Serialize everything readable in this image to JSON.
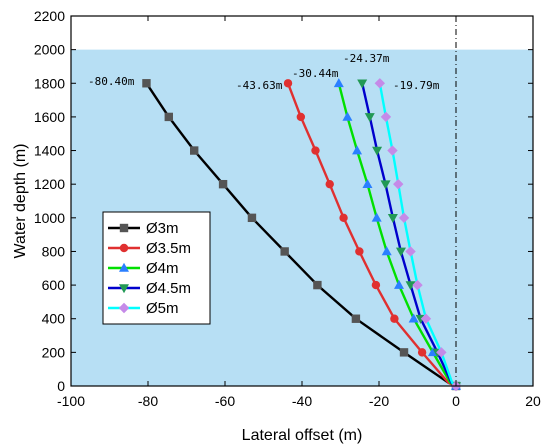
{
  "chart_data": {
    "type": "line",
    "xlabel": "Lateral offset (m)",
    "ylabel": "Water depth (m)",
    "xlim": [
      -100,
      20
    ],
    "ylim": [
      0,
      2200
    ],
    "xticks": [
      -100,
      -80,
      -60,
      -40,
      -20,
      0,
      20
    ],
    "yticks": [
      0,
      200,
      400,
      600,
      800,
      1000,
      1200,
      1400,
      1600,
      1800,
      2000,
      2200
    ],
    "water_level": 2000,
    "water_color": "#b7dff4",
    "reference_line_x": 0,
    "grid": false,
    "legend_position": "left-middle",
    "series": [
      {
        "name": "Ø3m",
        "color": "#000000",
        "marker": "square",
        "marker_color": "#555555",
        "x": [
          -80.4,
          -74.6,
          -68.0,
          -60.5,
          -53.0,
          -44.5,
          -36.0,
          -26.0,
          -13.5,
          -2.0,
          0
        ],
        "y": [
          1800,
          1600,
          1400,
          1200,
          1000,
          800,
          600,
          400,
          200,
          20,
          0
        ]
      },
      {
        "name": "Ø3.5m",
        "color": "#e03030",
        "marker": "circle",
        "marker_color": "#e03030",
        "x": [
          -43.63,
          -40.3,
          -36.5,
          -32.8,
          -29.2,
          -25.1,
          -20.8,
          -16.0,
          -8.8,
          -2.0,
          0
        ],
        "y": [
          1800,
          1600,
          1400,
          1200,
          1000,
          800,
          600,
          400,
          200,
          20,
          0
        ]
      },
      {
        "name": "Ø4m",
        "color": "#00e000",
        "marker": "triangle-up",
        "marker_color": "#2a7fff",
        "x": [
          -30.44,
          -28.2,
          -25.7,
          -23.0,
          -20.6,
          -18.0,
          -14.8,
          -11.0,
          -6.0,
          -1.5,
          0
        ],
        "y": [
          1800,
          1600,
          1400,
          1200,
          1000,
          800,
          600,
          400,
          200,
          20,
          0
        ]
      },
      {
        "name": "Ø4.5m",
        "color": "#0000cc",
        "marker": "triangle-down",
        "marker_color": "#229955",
        "x": [
          -24.37,
          -22.4,
          -20.5,
          -18.3,
          -16.4,
          -14.3,
          -11.8,
          -9.2,
          -4.8,
          -1.2,
          0
        ],
        "y": [
          1800,
          1600,
          1400,
          1200,
          1000,
          800,
          600,
          400,
          200,
          20,
          0
        ]
      },
      {
        "name": "Ø5m",
        "color": "#00ffff",
        "marker": "diamond",
        "marker_color": "#c58ae8",
        "x": [
          -19.79,
          -18.2,
          -16.5,
          -15.0,
          -13.5,
          -11.8,
          -10.0,
          -7.8,
          -3.8,
          -1.0,
          0
        ],
        "y": [
          1800,
          1600,
          1400,
          1200,
          1000,
          800,
          600,
          400,
          200,
          20,
          0
        ]
      }
    ],
    "annotations": [
      "-80.40m",
      "-43.63m",
      "-30.44m",
      "-24.37m",
      "-19.79m"
    ]
  }
}
